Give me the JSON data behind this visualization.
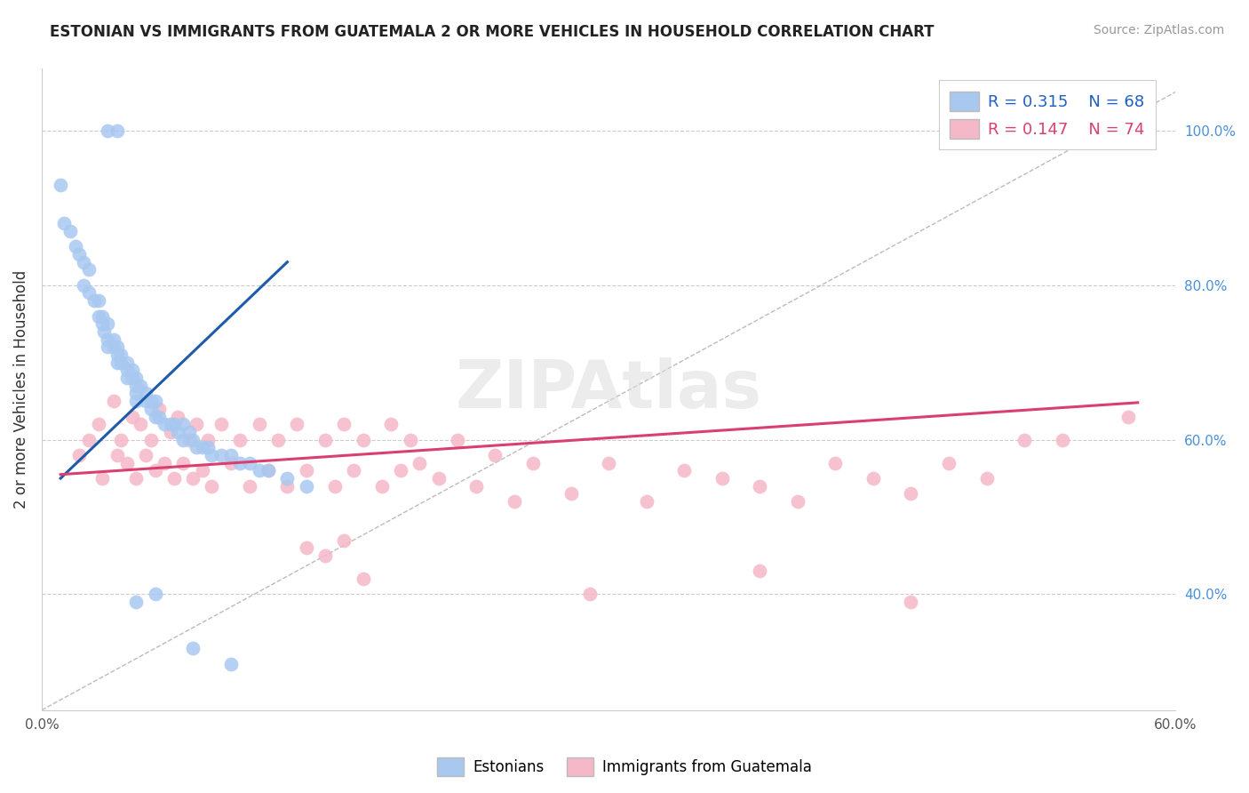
{
  "title": "ESTONIAN VS IMMIGRANTS FROM GUATEMALA 2 OR MORE VEHICLES IN HOUSEHOLD CORRELATION CHART",
  "source": "Source: ZipAtlas.com",
  "ylabel": "2 or more Vehicles in Household",
  "xlim": [
    0.0,
    0.6
  ],
  "ylim": [
    0.25,
    1.08
  ],
  "xtick_positions": [
    0.0,
    0.1,
    0.2,
    0.3,
    0.4,
    0.5,
    0.6
  ],
  "xtick_labels": [
    "0.0%",
    "",
    "",
    "",
    "",
    "",
    "60.0%"
  ],
  "ytick_vals_right": [
    0.4,
    0.6,
    0.8,
    1.0
  ],
  "ytick_labels_right": [
    "40.0%",
    "60.0%",
    "80.0%",
    "100.0%"
  ],
  "legend_r1": "R = 0.315",
  "legend_n1": "N = 68",
  "legend_r2": "R = 0.147",
  "legend_n2": "N = 74",
  "legend_label1": "Estonians",
  "legend_label2": "Immigrants from Guatemala",
  "blue_color": "#A8C8F0",
  "pink_color": "#F5B8C8",
  "blue_line_color": "#1E5BAA",
  "pink_line_color": "#D94070",
  "blue_scatter_x": [
    0.035,
    0.04,
    0.01,
    0.012,
    0.015,
    0.018,
    0.02,
    0.022,
    0.022,
    0.025,
    0.025,
    0.028,
    0.03,
    0.03,
    0.032,
    0.032,
    0.033,
    0.035,
    0.035,
    0.035,
    0.038,
    0.038,
    0.04,
    0.04,
    0.04,
    0.042,
    0.042,
    0.045,
    0.045,
    0.045,
    0.048,
    0.048,
    0.05,
    0.05,
    0.05,
    0.05,
    0.052,
    0.055,
    0.055,
    0.058,
    0.058,
    0.06,
    0.06,
    0.062,
    0.065,
    0.068,
    0.07,
    0.072,
    0.075,
    0.075,
    0.078,
    0.08,
    0.082,
    0.085,
    0.088,
    0.09,
    0.095,
    0.1,
    0.105,
    0.11,
    0.115,
    0.12,
    0.13,
    0.14,
    0.05,
    0.06,
    0.08,
    0.1
  ],
  "blue_scatter_y": [
    1.0,
    1.0,
    0.93,
    0.88,
    0.87,
    0.85,
    0.84,
    0.83,
    0.8,
    0.82,
    0.79,
    0.78,
    0.78,
    0.76,
    0.76,
    0.75,
    0.74,
    0.75,
    0.73,
    0.72,
    0.73,
    0.72,
    0.72,
    0.71,
    0.7,
    0.71,
    0.7,
    0.7,
    0.69,
    0.68,
    0.69,
    0.68,
    0.68,
    0.67,
    0.66,
    0.65,
    0.67,
    0.66,
    0.65,
    0.65,
    0.64,
    0.65,
    0.63,
    0.63,
    0.62,
    0.62,
    0.62,
    0.61,
    0.62,
    0.6,
    0.61,
    0.6,
    0.59,
    0.59,
    0.59,
    0.58,
    0.58,
    0.58,
    0.57,
    0.57,
    0.56,
    0.56,
    0.55,
    0.54,
    0.39,
    0.4,
    0.33,
    0.31
  ],
  "pink_scatter_x": [
    0.02,
    0.025,
    0.03,
    0.032,
    0.038,
    0.04,
    0.042,
    0.045,
    0.048,
    0.05,
    0.052,
    0.055,
    0.058,
    0.06,
    0.062,
    0.065,
    0.068,
    0.07,
    0.072,
    0.075,
    0.078,
    0.08,
    0.082,
    0.085,
    0.088,
    0.09,
    0.095,
    0.1,
    0.105,
    0.11,
    0.115,
    0.12,
    0.125,
    0.13,
    0.135,
    0.14,
    0.15,
    0.155,
    0.16,
    0.165,
    0.17,
    0.18,
    0.185,
    0.19,
    0.195,
    0.2,
    0.21,
    0.22,
    0.23,
    0.24,
    0.25,
    0.26,
    0.28,
    0.3,
    0.32,
    0.34,
    0.36,
    0.38,
    0.4,
    0.42,
    0.44,
    0.46,
    0.48,
    0.5,
    0.52,
    0.54,
    0.14,
    0.15,
    0.16,
    0.17,
    0.29,
    0.38,
    0.46,
    0.575
  ],
  "pink_scatter_y": [
    0.58,
    0.6,
    0.62,
    0.55,
    0.65,
    0.58,
    0.6,
    0.57,
    0.63,
    0.55,
    0.62,
    0.58,
    0.6,
    0.56,
    0.64,
    0.57,
    0.61,
    0.55,
    0.63,
    0.57,
    0.6,
    0.55,
    0.62,
    0.56,
    0.6,
    0.54,
    0.62,
    0.57,
    0.6,
    0.54,
    0.62,
    0.56,
    0.6,
    0.54,
    0.62,
    0.56,
    0.6,
    0.54,
    0.62,
    0.56,
    0.6,
    0.54,
    0.62,
    0.56,
    0.6,
    0.57,
    0.55,
    0.6,
    0.54,
    0.58,
    0.52,
    0.57,
    0.53,
    0.57,
    0.52,
    0.56,
    0.55,
    0.54,
    0.52,
    0.57,
    0.55,
    0.53,
    0.57,
    0.55,
    0.6,
    0.6,
    0.46,
    0.45,
    0.47,
    0.42,
    0.4,
    0.43,
    0.39,
    0.63
  ],
  "diag_line_x": [
    0.0,
    0.6
  ],
  "diag_line_y": [
    0.25,
    1.05
  ]
}
